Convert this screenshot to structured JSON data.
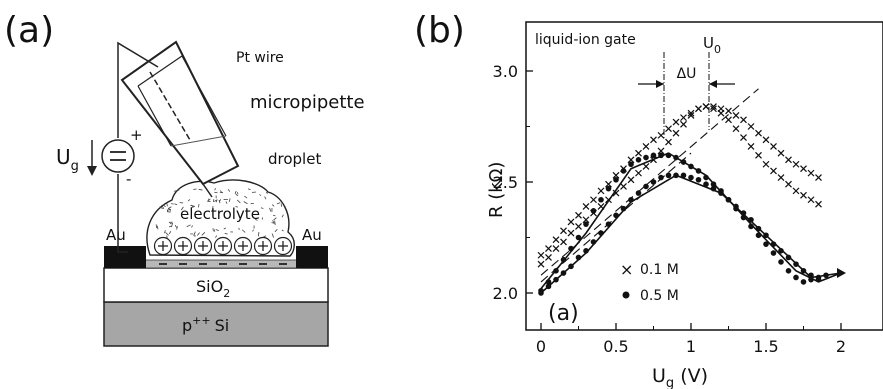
{
  "figure": {
    "panel_a_label": "(a)",
    "panel_b_label": "(b)"
  },
  "schematic": {
    "pt_wire": "Pt wire",
    "micropipette": "micropipette",
    "droplet": "droplet",
    "electrolyte": "electrolyte",
    "gate_voltage_symbol": "U",
    "gate_voltage_sub": "g",
    "plus_sign": "+",
    "minus_sign": "-",
    "electrode_left": "Au",
    "electrode_right": "Au",
    "oxide_layer": "SiO",
    "oxide_sub": "2",
    "substrate_sup": "++",
    "substrate_label": "p",
    "substrate_material": "Si",
    "positive_ions_count": 7,
    "negative_charges_count": 7
  },
  "chart_data": {
    "type": "scatter",
    "title": "liquid-ion gate",
    "inset_label": "(a)",
    "xlabel_symbol": "U",
    "xlabel_sub": "g",
    "xlabel_unit": "(V)",
    "ylabel": "R (kΩ)",
    "xlim": [
      -0.1,
      2.3
    ],
    "ylim": [
      1.93,
      3.12
    ],
    "x_ticks": [
      0,
      0.5,
      1,
      1.5,
      2
    ],
    "x_tick_labels": [
      "0",
      "0.5",
      "1",
      "1.5",
      "2"
    ],
    "y_ticks": [
      2.0,
      2.5,
      3.0
    ],
    "y_tick_labels": [
      "2.0",
      "2.5",
      "3.0"
    ],
    "annotations": {
      "u0_symbol": "U",
      "u0_sub": "0",
      "delta_u": "ΔU",
      "delta_u_x": [
        0.82,
        1.12
      ]
    },
    "legend": {
      "position": "bottom-left",
      "entries": [
        {
          "marker": "×",
          "label": "0.1 M"
        },
        {
          "marker": "•",
          "label": "0.5 M"
        }
      ]
    },
    "series": [
      {
        "name": "0.1 M",
        "marker": "cross",
        "points": [
          [
            0.0,
            2.17
          ],
          [
            0.05,
            2.2
          ],
          [
            0.1,
            2.24
          ],
          [
            0.15,
            2.28
          ],
          [
            0.2,
            2.32
          ],
          [
            0.25,
            2.35
          ],
          [
            0.3,
            2.39
          ],
          [
            0.35,
            2.42
          ],
          [
            0.4,
            2.46
          ],
          [
            0.45,
            2.49
          ],
          [
            0.5,
            2.53
          ],
          [
            0.55,
            2.56
          ],
          [
            0.6,
            2.6
          ],
          [
            0.65,
            2.63
          ],
          [
            0.7,
            2.66
          ],
          [
            0.75,
            2.69
          ],
          [
            0.8,
            2.71
          ],
          [
            0.85,
            2.74
          ],
          [
            0.9,
            2.77
          ],
          [
            0.95,
            2.79
          ],
          [
            1.0,
            2.81
          ],
          [
            1.05,
            2.83
          ],
          [
            1.1,
            2.84
          ],
          [
            1.15,
            2.84
          ],
          [
            1.2,
            2.83
          ],
          [
            1.25,
            2.82
          ],
          [
            1.3,
            2.8
          ],
          [
            1.35,
            2.78
          ],
          [
            1.4,
            2.75
          ],
          [
            1.45,
            2.72
          ],
          [
            1.5,
            2.69
          ],
          [
            1.55,
            2.66
          ],
          [
            1.6,
            2.63
          ],
          [
            1.65,
            2.6
          ],
          [
            1.7,
            2.58
          ],
          [
            1.75,
            2.56
          ],
          [
            1.8,
            2.54
          ],
          [
            1.85,
            2.52
          ],
          [
            0.0,
            2.13
          ],
          [
            0.05,
            2.16
          ],
          [
            0.1,
            2.2
          ],
          [
            0.15,
            2.23
          ],
          [
            0.2,
            2.27
          ],
          [
            0.25,
            2.3
          ],
          [
            0.3,
            2.33
          ],
          [
            0.35,
            2.36
          ],
          [
            0.4,
            2.39
          ],
          [
            0.45,
            2.42
          ],
          [
            0.5,
            2.45
          ],
          [
            0.55,
            2.48
          ],
          [
            0.6,
            2.51
          ],
          [
            0.65,
            2.54
          ],
          [
            0.7,
            2.57
          ],
          [
            0.75,
            2.6
          ],
          [
            0.8,
            2.64
          ],
          [
            0.85,
            2.68
          ],
          [
            0.9,
            2.72
          ],
          [
            0.95,
            2.76
          ],
          [
            1.0,
            2.8
          ],
          [
            1.05,
            2.83
          ],
          [
            1.1,
            2.84
          ],
          [
            1.15,
            2.83
          ],
          [
            1.2,
            2.81
          ],
          [
            1.25,
            2.78
          ],
          [
            1.3,
            2.74
          ],
          [
            1.35,
            2.7
          ],
          [
            1.4,
            2.66
          ],
          [
            1.45,
            2.62
          ],
          [
            1.5,
            2.58
          ],
          [
            1.55,
            2.55
          ],
          [
            1.6,
            2.52
          ],
          [
            1.65,
            2.49
          ],
          [
            1.7,
            2.46
          ],
          [
            1.75,
            2.44
          ],
          [
            1.8,
            2.42
          ],
          [
            1.85,
            2.4
          ]
        ]
      },
      {
        "name": "0.5 M",
        "marker": "dot",
        "points": [
          [
            0.0,
            2.01
          ],
          [
            0.05,
            2.05
          ],
          [
            0.1,
            2.1
          ],
          [
            0.15,
            2.15
          ],
          [
            0.2,
            2.2
          ],
          [
            0.25,
            2.25
          ],
          [
            0.3,
            2.31
          ],
          [
            0.35,
            2.37
          ],
          [
            0.4,
            2.42
          ],
          [
            0.45,
            2.47
          ],
          [
            0.5,
            2.51
          ],
          [
            0.55,
            2.55
          ],
          [
            0.6,
            2.58
          ],
          [
            0.65,
            2.6
          ],
          [
            0.7,
            2.61
          ],
          [
            0.75,
            2.62
          ],
          [
            0.8,
            2.62
          ],
          [
            0.85,
            2.62
          ],
          [
            0.9,
            2.61
          ],
          [
            0.95,
            2.59
          ],
          [
            1.0,
            2.57
          ],
          [
            1.05,
            2.55
          ],
          [
            1.1,
            2.52
          ],
          [
            1.15,
            2.49
          ],
          [
            1.2,
            2.46
          ],
          [
            1.25,
            2.42
          ],
          [
            1.3,
            2.38
          ],
          [
            1.35,
            2.34
          ],
          [
            1.4,
            2.3
          ],
          [
            1.45,
            2.26
          ],
          [
            1.5,
            2.22
          ],
          [
            1.55,
            2.18
          ],
          [
            1.6,
            2.14
          ],
          [
            1.65,
            2.1
          ],
          [
            1.7,
            2.07
          ],
          [
            1.75,
            2.05
          ],
          [
            1.8,
            2.06
          ],
          [
            1.85,
            2.07
          ],
          [
            1.9,
            2.08
          ],
          [
            0.0,
            2.0
          ],
          [
            0.05,
            2.03
          ],
          [
            0.1,
            2.06
          ],
          [
            0.15,
            2.09
          ],
          [
            0.2,
            2.12
          ],
          [
            0.25,
            2.16
          ],
          [
            0.3,
            2.19
          ],
          [
            0.35,
            2.23
          ],
          [
            0.4,
            2.27
          ],
          [
            0.45,
            2.31
          ],
          [
            0.5,
            2.35
          ],
          [
            0.55,
            2.38
          ],
          [
            0.6,
            2.42
          ],
          [
            0.65,
            2.45
          ],
          [
            0.7,
            2.48
          ],
          [
            0.75,
            2.5
          ],
          [
            0.8,
            2.52
          ],
          [
            0.85,
            2.53
          ],
          [
            0.9,
            2.53
          ],
          [
            0.95,
            2.53
          ],
          [
            1.0,
            2.52
          ],
          [
            1.05,
            2.51
          ],
          [
            1.1,
            2.49
          ],
          [
            1.15,
            2.47
          ],
          [
            1.2,
            2.45
          ],
          [
            1.25,
            2.42
          ],
          [
            1.3,
            2.39
          ],
          [
            1.35,
            2.36
          ],
          [
            1.4,
            2.33
          ],
          [
            1.45,
            2.29
          ],
          [
            1.5,
            2.26
          ],
          [
            1.55,
            2.22
          ],
          [
            1.6,
            2.19
          ],
          [
            1.65,
            2.16
          ],
          [
            1.7,
            2.13
          ],
          [
            1.75,
            2.1
          ],
          [
            1.8,
            2.08
          ],
          [
            1.85,
            2.06
          ]
        ]
      }
    ],
    "fit_lines": [
      {
        "style": "solid",
        "points": [
          [
            0.0,
            2.02
          ],
          [
            0.3,
            2.27
          ],
          [
            0.6,
            2.56
          ],
          [
            0.85,
            2.63
          ],
          [
            1.1,
            2.53
          ],
          [
            1.4,
            2.31
          ],
          [
            1.7,
            2.1
          ],
          [
            1.85,
            2.05
          ],
          [
            2.0,
            2.09
          ]
        ]
      },
      {
        "style": "solid",
        "points": [
          [
            0.0,
            2.0
          ],
          [
            0.3,
            2.18
          ],
          [
            0.6,
            2.41
          ],
          [
            0.9,
            2.53
          ],
          [
            1.2,
            2.45
          ],
          [
            1.5,
            2.26
          ],
          [
            1.8,
            2.07
          ],
          [
            2.0,
            2.09
          ]
        ]
      },
      {
        "style": "dashed",
        "points": [
          [
            0.0,
            2.08
          ],
          [
            1.45,
            2.92
          ]
        ]
      },
      {
        "style": "dashed",
        "points": [
          [
            0.0,
            2.05
          ],
          [
            1.0,
            2.63
          ]
        ]
      }
    ]
  }
}
